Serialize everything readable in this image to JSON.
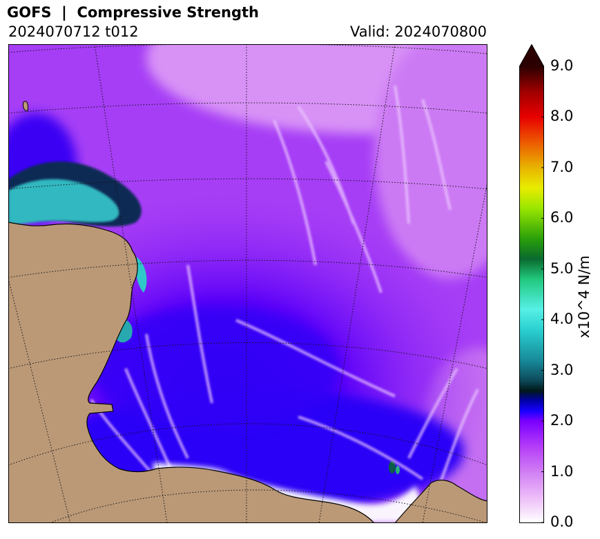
{
  "header": {
    "title": "GOFS  |  Compressive Strength",
    "run": "2024070712 t012",
    "valid": "Valid: 2024070800"
  },
  "colorbar": {
    "label": "x10^4 N/m",
    "min": 0.0,
    "max": 9.0,
    "extend": "max",
    "ticks": [
      "0.0",
      "1.0",
      "2.0",
      "3.0",
      "4.0",
      "5.0",
      "6.0",
      "7.0",
      "8.0",
      "9.0"
    ],
    "stops": [
      {
        "value": 0.0,
        "color": "#ffffff"
      },
      {
        "value": 0.5,
        "color": "#ecbcf8"
      },
      {
        "value": 1.0,
        "color": "#d07ef4"
      },
      {
        "value": 1.5,
        "color": "#b43cf8"
      },
      {
        "value": 2.0,
        "color": "#7a00ff"
      },
      {
        "value": 2.2,
        "color": "#1800ff"
      },
      {
        "value": 2.4,
        "color": "#0000a8"
      },
      {
        "value": 2.6,
        "color": "#001818"
      },
      {
        "value": 2.8,
        "color": "#0d4a5a"
      },
      {
        "value": 3.2,
        "color": "#188a9a"
      },
      {
        "value": 3.8,
        "color": "#2ad0d0"
      },
      {
        "value": 4.2,
        "color": "#56f0e6"
      },
      {
        "value": 4.8,
        "color": "#22c87e"
      },
      {
        "value": 5.2,
        "color": "#0a6a2e"
      },
      {
        "value": 5.6,
        "color": "#2aa00a"
      },
      {
        "value": 6.2,
        "color": "#9ae600"
      },
      {
        "value": 6.6,
        "color": "#e8ec00"
      },
      {
        "value": 7.0,
        "color": "#e8b400"
      },
      {
        "value": 7.5,
        "color": "#ec5a00"
      },
      {
        "value": 8.0,
        "color": "#e80000"
      },
      {
        "value": 8.5,
        "color": "#a00000"
      },
      {
        "value": 9.0,
        "color": "#2a0000"
      }
    ]
  },
  "map": {
    "land_color": "#bb9977",
    "graticule": "dotted",
    "field": "sea ice compressive strength"
  }
}
